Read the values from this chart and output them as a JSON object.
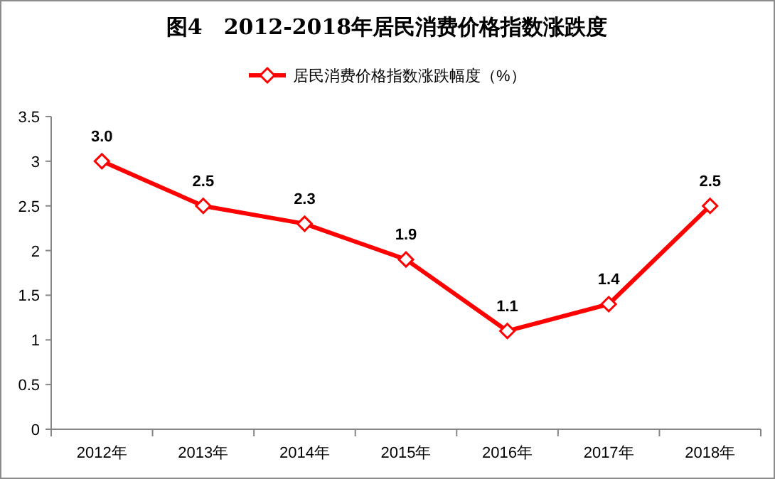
{
  "chart_data": {
    "type": "line",
    "title": "图4　2012-2018年居民消费价格指数涨跌度",
    "categories": [
      "2012年",
      "2013年",
      "2014年",
      "2015年",
      "2016年",
      "2017年",
      "2018年"
    ],
    "series": [
      {
        "name": "居民消费价格指数涨跌幅度（%）",
        "color": "#ff0000",
        "values": [
          3.0,
          2.5,
          2.3,
          1.9,
          1.1,
          1.4,
          2.5
        ],
        "value_labels": [
          "3.0",
          "2.5",
          "2.3",
          "1.9",
          "1.1",
          "1.4",
          "2.5"
        ]
      }
    ],
    "ylim": [
      0,
      3.5
    ],
    "yticks": [
      0,
      0.5,
      1,
      1.5,
      2,
      2.5,
      3,
      3.5
    ],
    "marker": "diamond",
    "line_style": "solid",
    "legend": "top",
    "grid": false
  }
}
